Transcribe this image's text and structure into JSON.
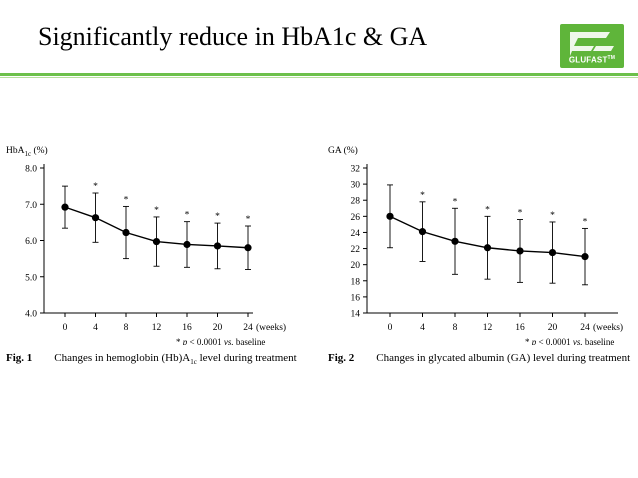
{
  "slide": {
    "title": "Significantly reduce in HbA1c & GA",
    "logo_text": "GLUFAST",
    "logo_tm": "TM",
    "colors": {
      "accent": "#6cc04a",
      "logo_bg": "#5fb53a"
    }
  },
  "chart_data": [
    {
      "type": "line",
      "ylabel_main": "HbA",
      "ylabel_sub": "1c",
      "ylabel_tail": "(%)",
      "xlabel": "(weeks)",
      "categories": [
        0,
        4,
        8,
        12,
        16,
        20,
        24
      ],
      "values": [
        6.92,
        6.63,
        6.22,
        5.97,
        5.89,
        5.85,
        5.8
      ],
      "error": [
        0.58,
        0.68,
        0.72,
        0.68,
        0.63,
        0.63,
        0.6
      ],
      "significant": [
        false,
        true,
        true,
        true,
        true,
        true,
        true
      ],
      "significance_marker": "*",
      "yticks": [
        4.0,
        5.0,
        6.0,
        7.0,
        8.0
      ],
      "ytick_labels": [
        "4.0",
        "5.0",
        "6.0",
        "7.0",
        "8.0"
      ],
      "ylim": [
        4.0,
        8.0
      ],
      "footnote_mark": "* ",
      "footnote_p": "p",
      "footnote_mid": " < 0.0001 ",
      "footnote_vs": "vs.",
      "footnote_tail": " baseline",
      "fig_label": "Fig. 1",
      "caption": "Changes in hemoglobin (Hb)A",
      "caption_sub": "1c",
      "caption_tail": " level during treatment"
    },
    {
      "type": "line",
      "ylabel_main": "GA (%)",
      "xlabel": "(weeks)",
      "categories": [
        0,
        4,
        8,
        12,
        16,
        20,
        24
      ],
      "values": [
        26.0,
        24.1,
        22.9,
        22.1,
        21.7,
        21.5,
        21.0
      ],
      "error": [
        3.9,
        3.7,
        4.1,
        3.9,
        3.9,
        3.8,
        3.5
      ],
      "significant": [
        false,
        true,
        true,
        true,
        true,
        true,
        true
      ],
      "significance_marker": "*",
      "yticks": [
        14,
        16,
        18,
        20,
        22,
        24,
        26,
        28,
        30,
        32
      ],
      "ytick_labels": [
        "14",
        "16",
        "18",
        "20",
        "22",
        "24",
        "26",
        "28",
        "30",
        "32"
      ],
      "ylim": [
        14,
        32
      ],
      "footnote_mark": "* ",
      "footnote_p": "p",
      "footnote_mid": " < 0.0001 ",
      "footnote_vs": "vs.",
      "footnote_tail": " baseline",
      "fig_label": "Fig. 2",
      "caption": "Changes in glycated albumin (GA) level during treatment"
    }
  ]
}
